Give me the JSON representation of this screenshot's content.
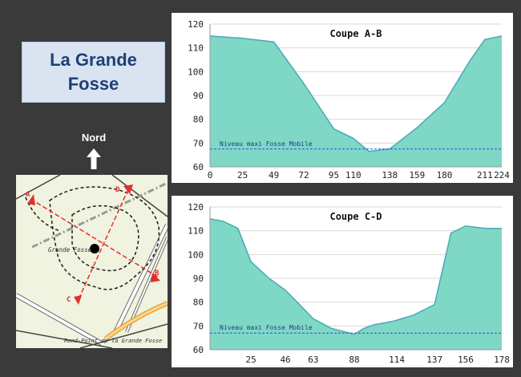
{
  "title": "La Grande\nFosse",
  "north": {
    "label": "Nord",
    "icon": "arrow-up-icon"
  },
  "map": {
    "point_labels": {
      "a": "A",
      "b": "B",
      "c": "C",
      "d": "D"
    },
    "place_label": "Grande Fosse",
    "road_label": "Rond-Point de la Grande Fosse"
  },
  "colors": {
    "background": "#3a3a3a",
    "area_fill": "#7fd8c6",
    "area_line": "#4aa7b8",
    "max_level_line": "#2a4fc9",
    "title_text": "#1f3f78",
    "section_line": "#e0312a"
  },
  "chart_data": [
    {
      "type": "area",
      "title": "Coupe A-B",
      "x": [
        0,
        25,
        49,
        72,
        95,
        110,
        122,
        138,
        159,
        180,
        200,
        211,
        224
      ],
      "values": [
        115,
        114,
        112.5,
        95,
        76,
        72,
        66.5,
        67.5,
        76.5,
        87,
        105,
        113.5,
        115
      ],
      "x_ticks": [
        "0",
        "25",
        "49",
        "72",
        "95",
        "110",
        "138",
        "159",
        "180",
        "211",
        "224"
      ],
      "y_ticks": [
        60,
        70,
        80,
        90,
        100,
        110,
        120
      ],
      "xlim": [
        0,
        224
      ],
      "ylim": [
        60,
        120
      ],
      "grid": true,
      "reference_line": {
        "label": "Niveau maxi Fosse Mobile",
        "y": 67.5
      }
    },
    {
      "type": "area",
      "title": "Coupe C-D",
      "x": [
        0,
        8,
        17,
        25,
        36,
        46,
        56,
        63,
        74,
        88,
        94,
        100,
        112,
        124,
        137,
        147,
        156,
        168,
        178
      ],
      "values": [
        115,
        114,
        111,
        97,
        90,
        85,
        78,
        73,
        69,
        66.5,
        69,
        70.5,
        72,
        74.5,
        79,
        109,
        112,
        111,
        111
      ],
      "x_ticks": [
        "25",
        "46",
        "63",
        "88",
        "114",
        "137",
        "156",
        "178"
      ],
      "y_ticks": [
        60,
        70,
        80,
        90,
        100,
        110,
        120
      ],
      "xlim": [
        0,
        178
      ],
      "ylim": [
        60,
        120
      ],
      "grid": true,
      "reference_line": {
        "label": "Niveau maxi Fosse Mobile",
        "y": 67
      }
    }
  ]
}
